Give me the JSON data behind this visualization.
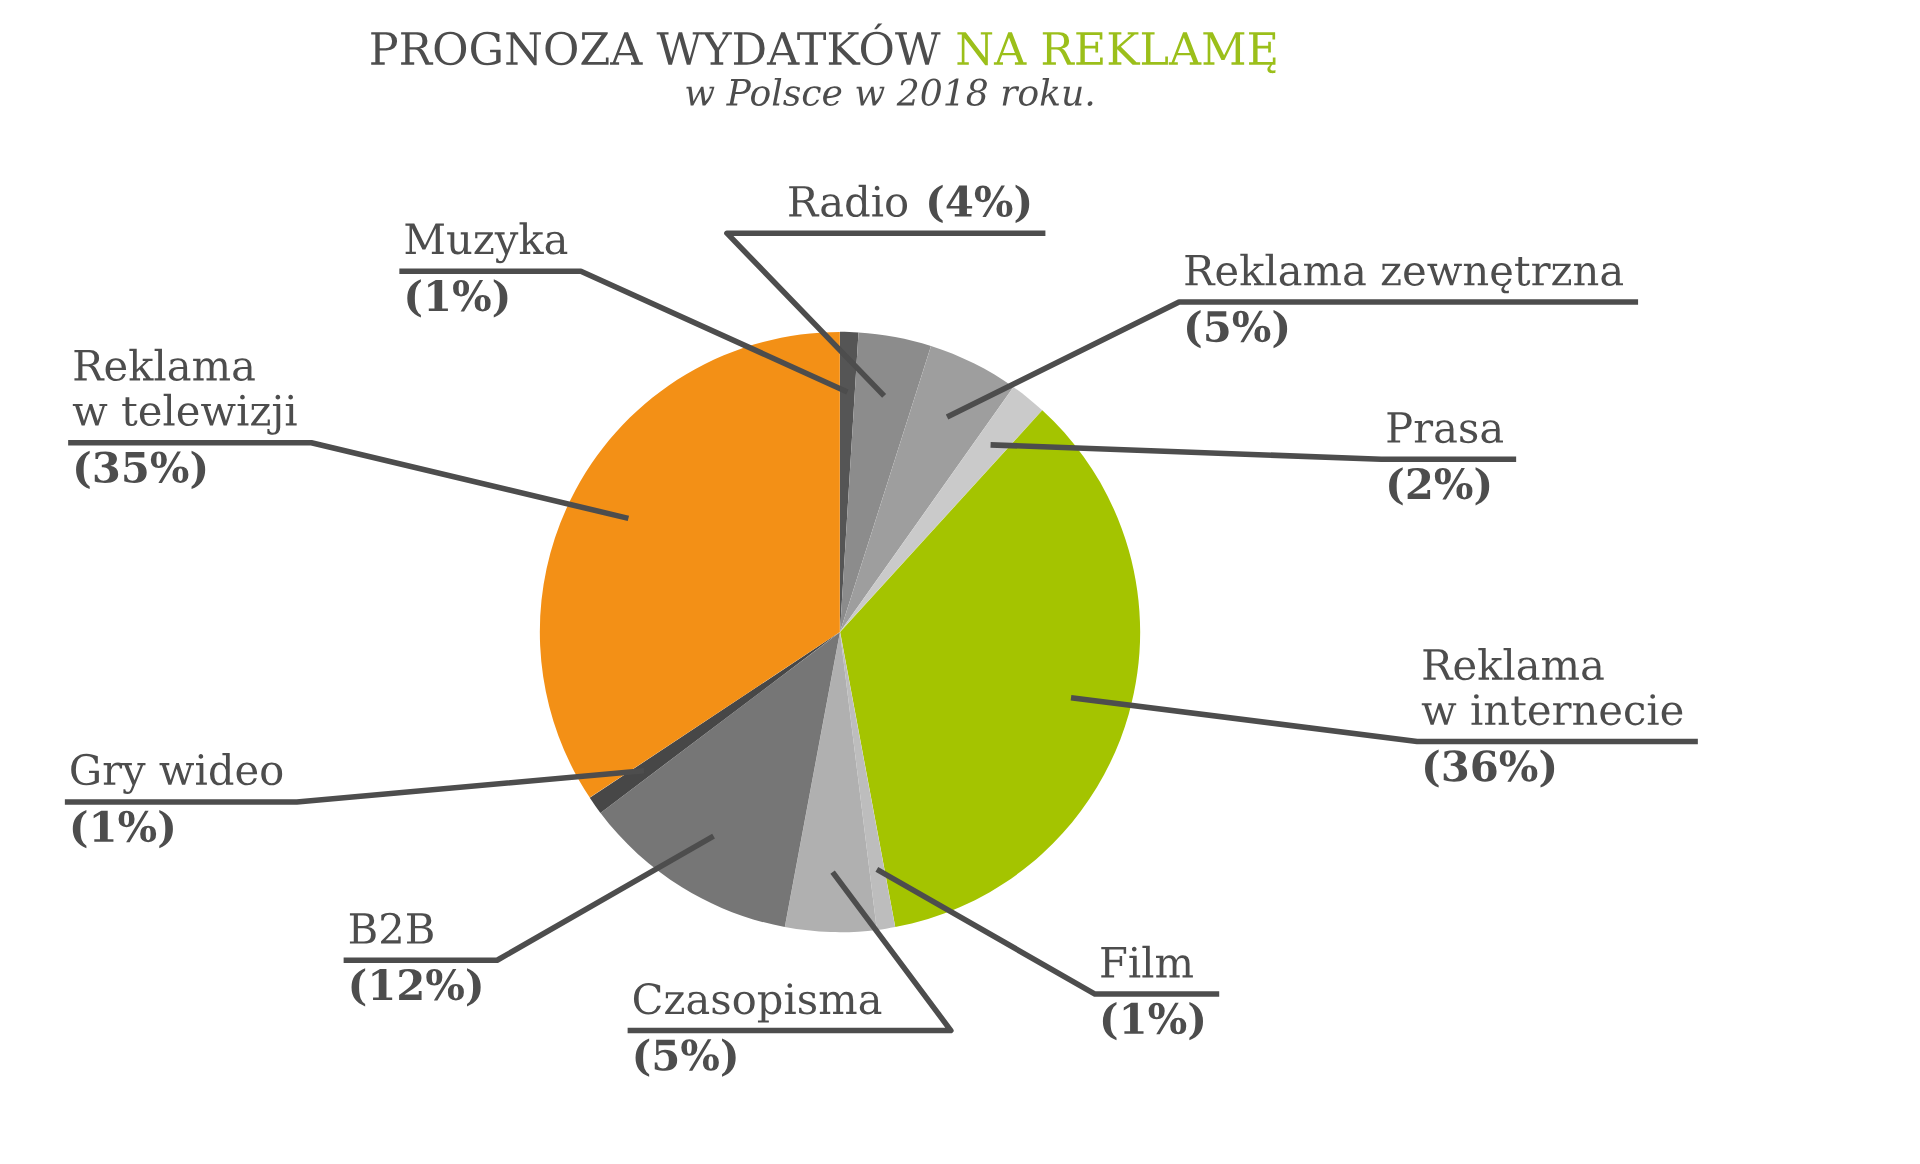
{
  "chart_data": {
    "type": "pie",
    "title": "PROGNOZA WYDATKÓW NA REKLAMĘ",
    "subtitle": "w Polsce w 2018 roku.",
    "categories": [
      "Muzyka",
      "Radio",
      "Reklama zewnętrzna",
      "Prasa",
      "Reklama\nw internecie",
      "Film",
      "Czasopisma",
      "B2B",
      "Gry wideo",
      "Reklama\nw telewizji"
    ],
    "values": [
      1,
      4,
      5,
      2,
      36,
      1,
      5,
      12,
      1,
      35
    ],
    "value_labels": [
      "(1%)",
      "(4%)",
      "(5%)",
      "(2%)",
      "(36%)",
      "(1%)",
      "(5%)",
      "(12%)",
      "(1%)",
      "(35%)"
    ],
    "colors": [
      "#555555",
      "#8c8c8c",
      "#9e9e9e",
      "#cacaca",
      "#a4c400",
      "#bdbdbd",
      "#b0b0b0",
      "#767676",
      "#474747",
      "#f39016"
    ]
  }
}
